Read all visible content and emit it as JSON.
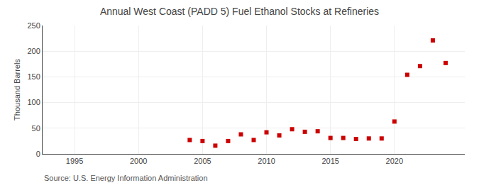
{
  "chart_data": {
    "type": "scatter",
    "title": "Annual West Coast (PADD 5) Fuel Ethanol Stocks at Refineries",
    "ylabel": "Thousand Barrels",
    "annotations": [
      "Source: U.S. Energy Information Administration"
    ],
    "x": [
      2004,
      2005,
      2006,
      2007,
      2008,
      2009,
      2010,
      2011,
      2012,
      2013,
      2014,
      2015,
      2016,
      2017,
      2018,
      2019,
      2020,
      2021,
      2022,
      2023,
      2024
    ],
    "values": [
      27,
      25,
      16,
      25,
      38,
      27,
      42,
      36,
      48,
      43,
      44,
      31,
      31,
      29,
      30,
      30,
      63,
      154,
      171,
      221,
      177
    ],
    "color": "#cc0000",
    "marker": "square",
    "xlim": [
      1992.5,
      2025.5
    ],
    "ylim": [
      0,
      250
    ],
    "xticks": [
      1995,
      2000,
      2005,
      2010,
      2015,
      2020
    ],
    "yticks": [
      0,
      50,
      100,
      150,
      200,
      250
    ],
    "grid": true
  }
}
